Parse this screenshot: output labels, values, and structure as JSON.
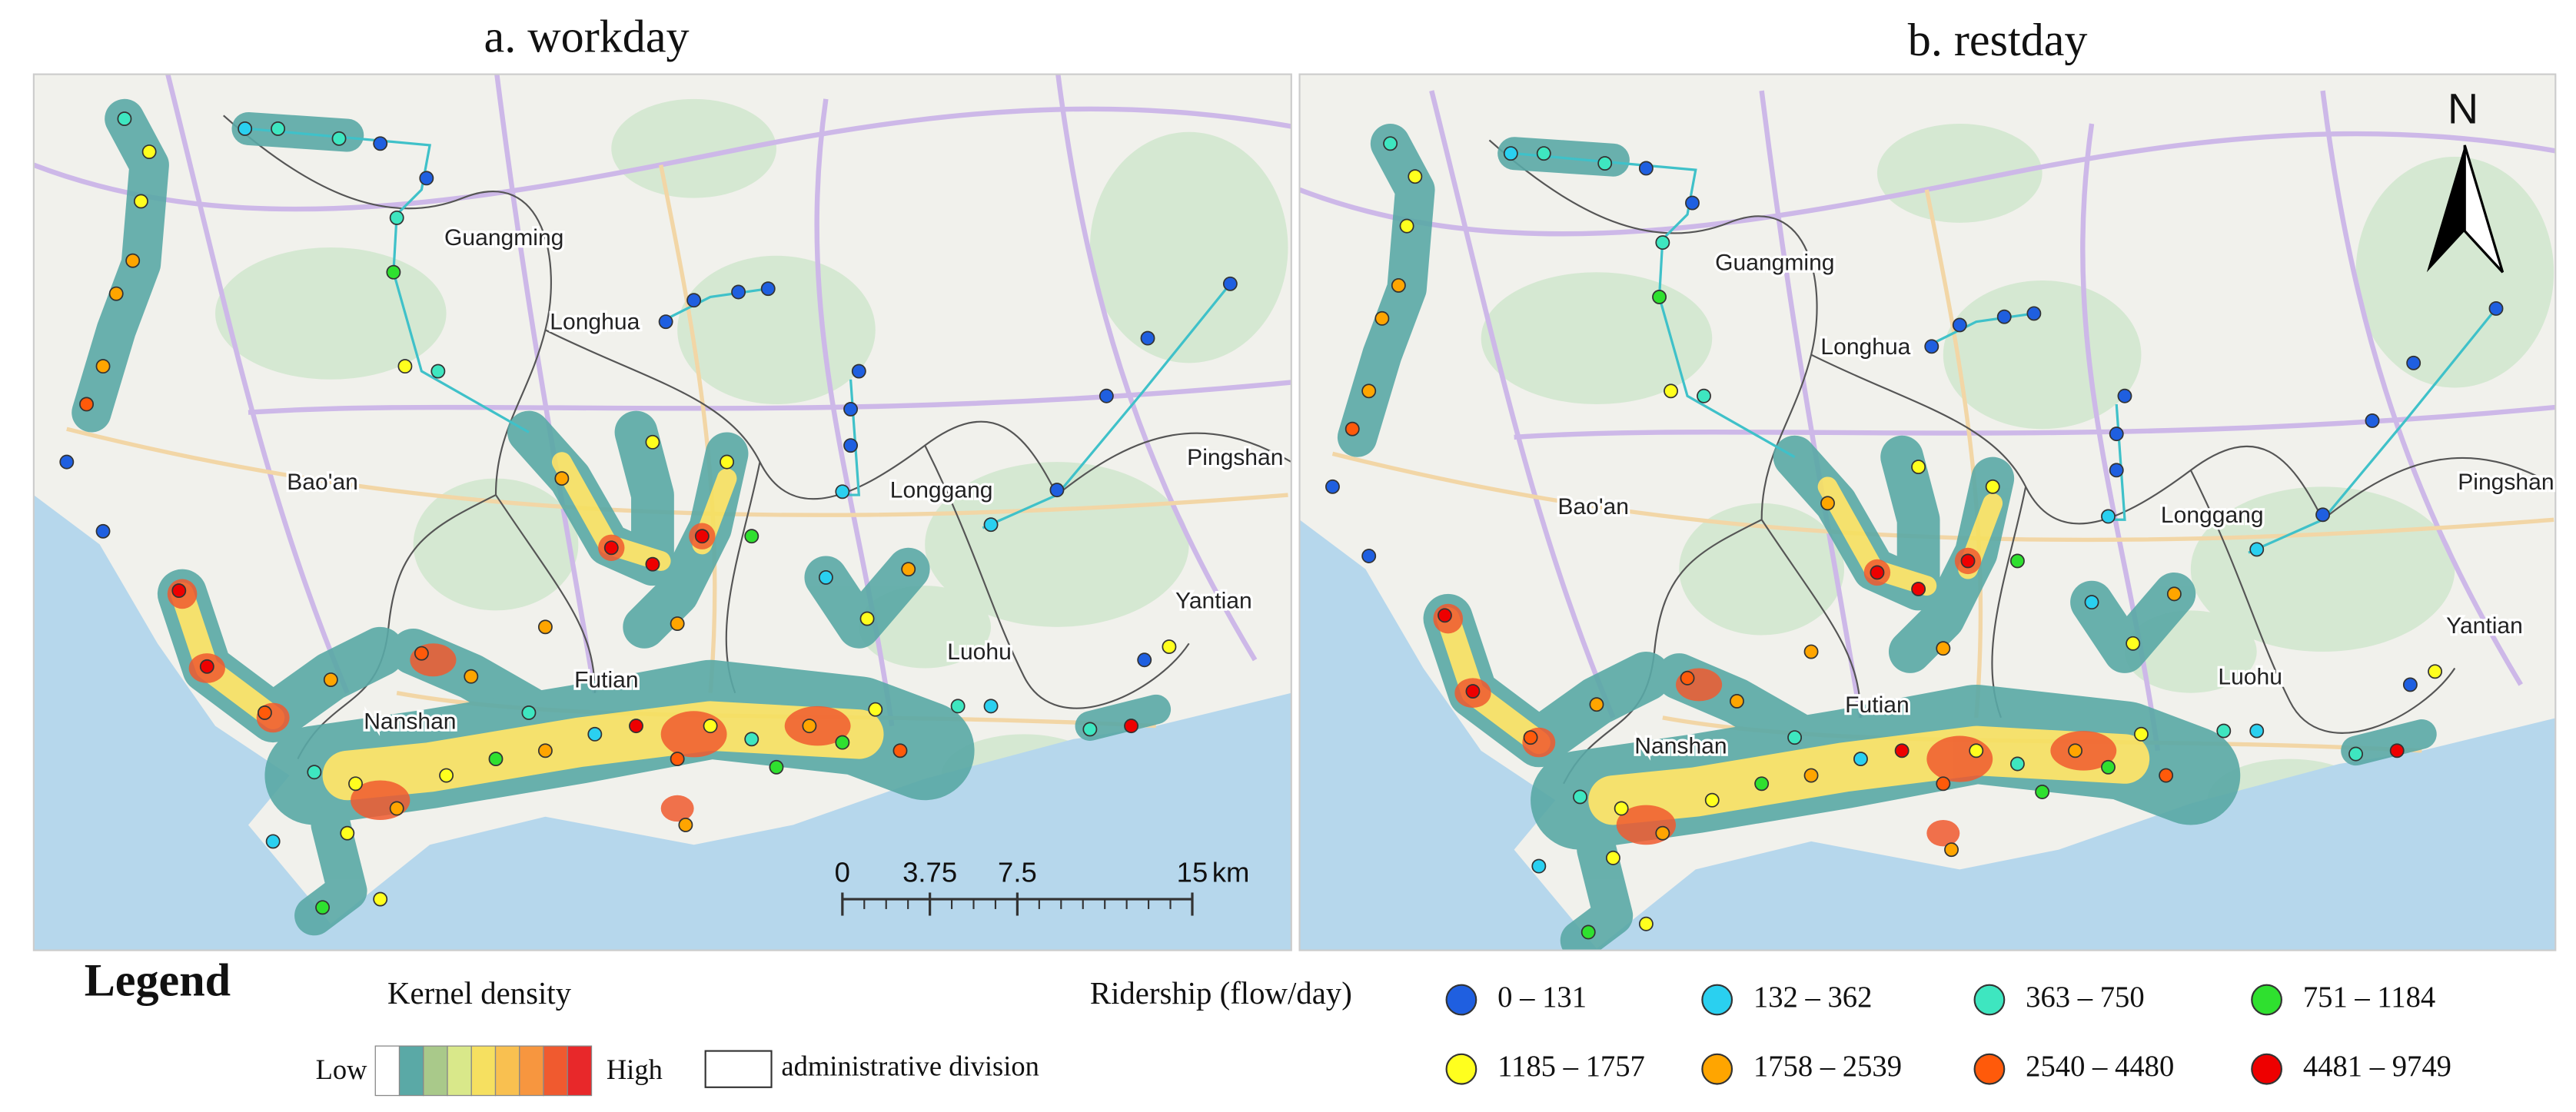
{
  "panels": [
    {
      "title": "a. workday",
      "districts": [
        "Guangming",
        "Longhua",
        "Bao'an",
        "Longgang",
        "Pingshan",
        "Yantian",
        "Luohu",
        "Futian",
        "Nanshan"
      ]
    },
    {
      "title": "b. restday",
      "districts": [
        "Guangming",
        "Longhua",
        "Bao'an",
        "Longgang",
        "Pingshan",
        "Yantian",
        "Luohu",
        "Futian",
        "Nanshan"
      ]
    }
  ],
  "north_arrow": "N",
  "scale_bar": {
    "ticks": [
      0,
      3.75,
      7.5,
      15
    ],
    "unit": "km"
  },
  "legend": {
    "title": "Legend",
    "kernel_density": {
      "title": "Kernel density",
      "low": "Low",
      "high": "High",
      "colors": [
        "#ffffff",
        "#5aa9a6",
        "#a9c98a",
        "#d9e88a",
        "#f6e060",
        "#f9c050",
        "#f7963f",
        "#f05a2f",
        "#e8282a"
      ]
    },
    "admin_division": "administrative division",
    "ridership": {
      "title": "Ridership (flow/day)",
      "classes": [
        {
          "label": "0 – 131",
          "color": "#1f5fe0"
        },
        {
          "label": "132 – 362",
          "color": "#2ad0f0"
        },
        {
          "label": "363 – 750",
          "color": "#3ee6c0"
        },
        {
          "label": "751 – 1184",
          "color": "#2fe02f"
        },
        {
          "label": "1185 – 1757",
          "color": "#ffff1e"
        },
        {
          "label": "1758 – 2539",
          "color": "#ffa500"
        },
        {
          "label": "2540 – 4480",
          "color": "#ff5a0a"
        },
        {
          "label": "4481 – 9749",
          "color": "#ee0000"
        }
      ]
    }
  }
}
